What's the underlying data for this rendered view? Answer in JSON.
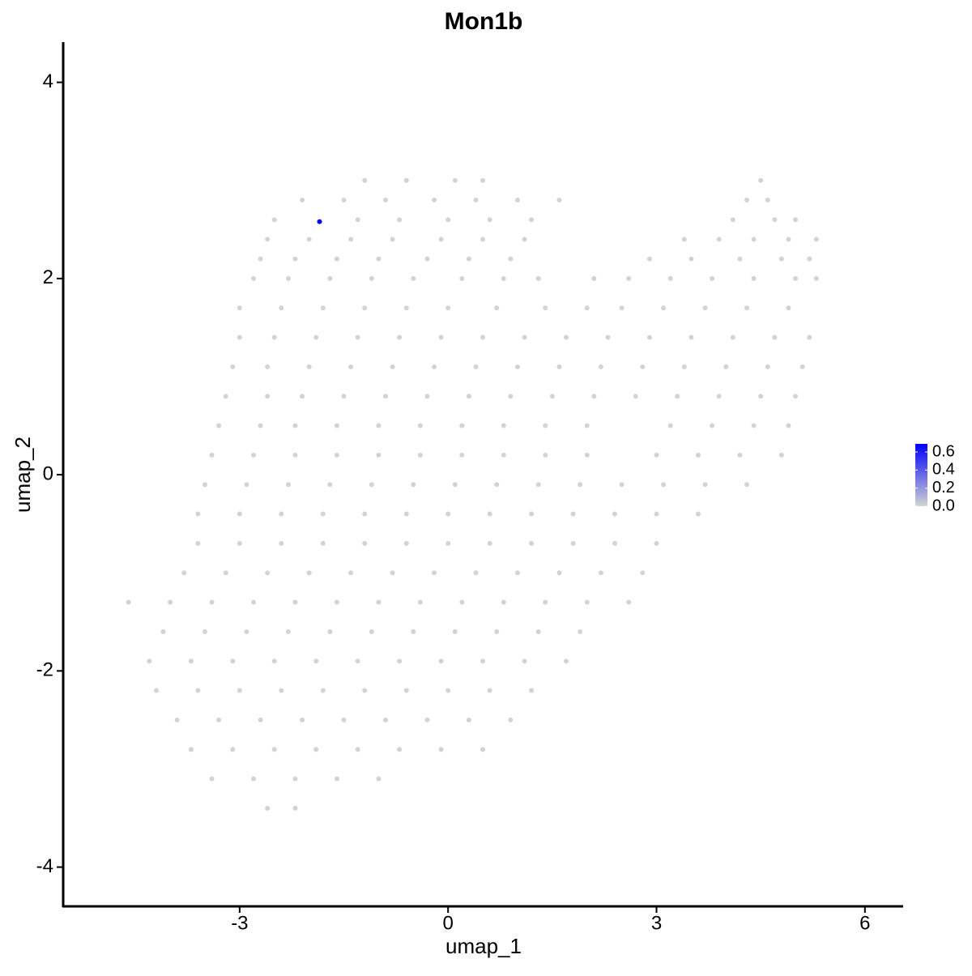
{
  "chart_data": {
    "type": "scatter",
    "title": "Mon1b",
    "x_label": "umap_1",
    "y_label": "umap_2",
    "xlim": [
      -5.54,
      6.55
    ],
    "ylim": [
      -4.4,
      4.41
    ],
    "xticks": [
      -3,
      0,
      3,
      6
    ],
    "yticks": [
      -4,
      -2,
      0,
      2,
      4
    ],
    "x": [
      -1.2,
      -0.6,
      0.1,
      0.5,
      4.5,
      -2.1,
      -1.5,
      -0.9,
      -0.2,
      0.4,
      1.0,
      1.6,
      4.3,
      4.6,
      -2.5,
      -1.3,
      -0.7,
      0.0,
      0.6,
      1.2,
      4.1,
      4.7,
      5.0,
      -2.6,
      -2.0,
      -1.4,
      -0.8,
      -0.1,
      0.5,
      1.1,
      3.4,
      3.9,
      4.4,
      4.9,
      5.3,
      -2.7,
      -2.2,
      -1.6,
      -1.0,
      -0.3,
      0.3,
      0.9,
      2.9,
      3.5,
      4.2,
      4.8,
      5.2,
      -2.8,
      -2.3,
      -1.7,
      -1.1,
      -0.5,
      0.2,
      0.8,
      1.3,
      2.1,
      2.6,
      3.2,
      3.8,
      4.4,
      5.0,
      5.3,
      -3.0,
      -2.4,
      -1.8,
      -1.2,
      -0.6,
      0.0,
      0.7,
      1.4,
      2.0,
      2.5,
      3.1,
      3.7,
      4.3,
      4.9,
      -3.0,
      -2.5,
      -1.9,
      -1.3,
      -0.7,
      -0.1,
      0.5,
      1.1,
      1.7,
      2.3,
      2.9,
      3.5,
      4.1,
      4.7,
      5.2,
      -3.1,
      -2.6,
      -2.0,
      -1.4,
      -0.8,
      -0.2,
      0.4,
      1.0,
      1.6,
      2.2,
      2.8,
      3.4,
      4.0,
      4.6,
      5.1,
      -3.2,
      -2.6,
      -2.1,
      -1.5,
      -0.9,
      -0.3,
      0.3,
      0.9,
      1.5,
      2.1,
      2.7,
      3.3,
      3.9,
      4.5,
      5.0,
      -3.3,
      -2.7,
      -2.2,
      -1.6,
      -1.0,
      -0.4,
      0.2,
      0.8,
      1.4,
      2.0,
      3.2,
      3.8,
      4.4,
      4.9,
      -3.4,
      -2.8,
      -2.2,
      -1.6,
      -1.0,
      -0.4,
      0.2,
      0.8,
      1.4,
      2.0,
      3.0,
      3.6,
      4.2,
      4.8,
      -3.5,
      -2.9,
      -2.3,
      -1.7,
      -1.1,
      -0.5,
      0.1,
      0.7,
      1.3,
      1.9,
      2.5,
      3.1,
      3.7,
      4.3,
      -3.6,
      -3.0,
      -2.4,
      -1.8,
      -1.2,
      -0.6,
      0.0,
      0.6,
      1.2,
      1.8,
      2.4,
      3.0,
      3.6,
      -3.6,
      -3.0,
      -2.4,
      -1.8,
      -1.2,
      -0.6,
      0.0,
      0.6,
      1.2,
      1.8,
      2.4,
      3.0,
      -3.8,
      -3.2,
      -2.6,
      -2.0,
      -1.4,
      -0.8,
      -0.2,
      0.4,
      1.0,
      1.6,
      2.2,
      2.8,
      -4.6,
      -4.0,
      -3.4,
      -2.8,
      -2.2,
      -1.6,
      -1.0,
      -0.4,
      0.2,
      0.8,
      1.4,
      2.0,
      2.6,
      -4.1,
      -3.5,
      -2.9,
      -2.3,
      -1.7,
      -1.1,
      -0.5,
      0.1,
      0.7,
      1.3,
      1.9,
      -4.3,
      -3.7,
      -3.1,
      -2.5,
      -1.9,
      -1.3,
      -0.7,
      -0.1,
      0.5,
      1.1,
      1.7,
      -4.2,
      -3.6,
      -3.0,
      -2.4,
      -1.8,
      -1.2,
      -0.6,
      0.0,
      0.6,
      1.2,
      -3.9,
      -3.3,
      -2.7,
      -2.1,
      -1.5,
      -0.9,
      -0.3,
      0.3,
      0.9,
      -3.7,
      -3.1,
      -2.5,
      -1.9,
      -1.3,
      -0.7,
      -0.1,
      0.5,
      -3.4,
      -2.8,
      -2.2,
      -1.6,
      -1.0,
      -2.6,
      -2.2,
      -1.85
    ],
    "y": [
      3.0,
      3.0,
      3.0,
      3.0,
      3.0,
      2.8,
      2.8,
      2.8,
      2.8,
      2.8,
      2.8,
      2.8,
      2.8,
      2.8,
      2.6,
      2.6,
      2.6,
      2.6,
      2.6,
      2.6,
      2.6,
      2.6,
      2.6,
      2.4,
      2.4,
      2.4,
      2.4,
      2.4,
      2.4,
      2.4,
      2.4,
      2.4,
      2.4,
      2.4,
      2.4,
      2.2,
      2.2,
      2.2,
      2.2,
      2.2,
      2.2,
      2.2,
      2.2,
      2.2,
      2.2,
      2.2,
      2.2,
      2.0,
      2.0,
      2.0,
      2.0,
      2.0,
      2.0,
      2.0,
      2.0,
      2.0,
      2.0,
      2.0,
      2.0,
      2.0,
      2.0,
      2.0,
      1.7,
      1.7,
      1.7,
      1.7,
      1.7,
      1.7,
      1.7,
      1.7,
      1.7,
      1.7,
      1.7,
      1.7,
      1.7,
      1.7,
      1.4,
      1.4,
      1.4,
      1.4,
      1.4,
      1.4,
      1.4,
      1.4,
      1.4,
      1.4,
      1.4,
      1.4,
      1.4,
      1.4,
      1.4,
      1.1,
      1.1,
      1.1,
      1.1,
      1.1,
      1.1,
      1.1,
      1.1,
      1.1,
      1.1,
      1.1,
      1.1,
      1.1,
      1.1,
      1.1,
      0.8,
      0.8,
      0.8,
      0.8,
      0.8,
      0.8,
      0.8,
      0.8,
      0.8,
      0.8,
      0.8,
      0.8,
      0.8,
      0.8,
      0.8,
      0.5,
      0.5,
      0.5,
      0.5,
      0.5,
      0.5,
      0.5,
      0.5,
      0.5,
      0.5,
      0.5,
      0.5,
      0.5,
      0.5,
      0.2,
      0.2,
      0.2,
      0.2,
      0.2,
      0.2,
      0.2,
      0.2,
      0.2,
      0.2,
      0.2,
      0.2,
      0.2,
      0.2,
      -0.1,
      -0.1,
      -0.1,
      -0.1,
      -0.1,
      -0.1,
      -0.1,
      -0.1,
      -0.1,
      -0.1,
      -0.1,
      -0.1,
      -0.1,
      -0.1,
      -0.4,
      -0.4,
      -0.4,
      -0.4,
      -0.4,
      -0.4,
      -0.4,
      -0.4,
      -0.4,
      -0.4,
      -0.4,
      -0.4,
      -0.4,
      -0.7,
      -0.7,
      -0.7,
      -0.7,
      -0.7,
      -0.7,
      -0.7,
      -0.7,
      -0.7,
      -0.7,
      -0.7,
      -0.7,
      -1.0,
      -1.0,
      -1.0,
      -1.0,
      -1.0,
      -1.0,
      -1.0,
      -1.0,
      -1.0,
      -1.0,
      -1.0,
      -1.0,
      -1.3,
      -1.3,
      -1.3,
      -1.3,
      -1.3,
      -1.3,
      -1.3,
      -1.3,
      -1.3,
      -1.3,
      -1.3,
      -1.3,
      -1.3,
      -1.6,
      -1.6,
      -1.6,
      -1.6,
      -1.6,
      -1.6,
      -1.6,
      -1.6,
      -1.6,
      -1.6,
      -1.6,
      -1.9,
      -1.9,
      -1.9,
      -1.9,
      -1.9,
      -1.9,
      -1.9,
      -1.9,
      -1.9,
      -1.9,
      -1.9,
      -2.2,
      -2.2,
      -2.2,
      -2.2,
      -2.2,
      -2.2,
      -2.2,
      -2.2,
      -2.2,
      -2.2,
      -2.5,
      -2.5,
      -2.5,
      -2.5,
      -2.5,
      -2.5,
      -2.5,
      -2.5,
      -2.5,
      -2.8,
      -2.8,
      -2.8,
      -2.8,
      -2.8,
      -2.8,
      -2.8,
      -2.8,
      -3.1,
      -3.1,
      -3.1,
      -3.1,
      -3.1,
      -3.4,
      -3.4,
      2.58
    ],
    "values": [
      0,
      0,
      0,
      0,
      0,
      0,
      0,
      0,
      0,
      0,
      0,
      0,
      0,
      0,
      0,
      0,
      0,
      0,
      0,
      0,
      0,
      0,
      0,
      0,
      0,
      0,
      0,
      0,
      0,
      0,
      0,
      0,
      0,
      0,
      0,
      0,
      0,
      0,
      0,
      0,
      0,
      0,
      0,
      0,
      0,
      0,
      0,
      0,
      0,
      0,
      0,
      0,
      0,
      0,
      0,
      0,
      0,
      0,
      0,
      0,
      0,
      0,
      0,
      0,
      0,
      0,
      0,
      0,
      0,
      0,
      0,
      0,
      0,
      0,
      0,
      0,
      0,
      0,
      0,
      0,
      0,
      0,
      0,
      0,
      0,
      0,
      0,
      0,
      0,
      0,
      0,
      0,
      0,
      0,
      0,
      0,
      0,
      0,
      0,
      0,
      0,
      0,
      0,
      0,
      0,
      0,
      0,
      0,
      0,
      0,
      0,
      0,
      0,
      0,
      0,
      0,
      0,
      0,
      0,
      0,
      0,
      0,
      0,
      0,
      0,
      0,
      0,
      0,
      0,
      0,
      0,
      0,
      0,
      0,
      0,
      0,
      0,
      0,
      0,
      0,
      0,
      0,
      0,
      0,
      0,
      0,
      0,
      0,
      0,
      0,
      0,
      0,
      0,
      0,
      0,
      0,
      0,
      0,
      0,
      0,
      0,
      0,
      0,
      0,
      0,
      0,
      0,
      0,
      0,
      0,
      0,
      0,
      0,
      0,
      0,
      0,
      0,
      0,
      0,
      0,
      0,
      0,
      0,
      0,
      0,
      0,
      0,
      0,
      0,
      0,
      0,
      0,
      0,
      0,
      0,
      0,
      0,
      0,
      0,
      0,
      0,
      0,
      0,
      0,
      0,
      0,
      0,
      0,
      0,
      0,
      0,
      0,
      0,
      0,
      0,
      0,
      0,
      0,
      0,
      0,
      0,
      0,
      0,
      0,
      0,
      0,
      0,
      0,
      0,
      0,
      0,
      0,
      0,
      0,
      0,
      0,
      0,
      0,
      0,
      0,
      0,
      0,
      0,
      0,
      0,
      0,
      0,
      0,
      0,
      0,
      0,
      0,
      0,
      0,
      0,
      0,
      0,
      0,
      0,
      0,
      0,
      0,
      0,
      0,
      0,
      0,
      0,
      0,
      0,
      0.69
    ],
    "colorbar": {
      "colors": [
        "#d3d3d3",
        "#0000ff"
      ],
      "lim": [
        0,
        0.69
      ],
      "ticks": [
        {
          "value": 0,
          "label": "0.0"
        },
        {
          "value": 0.2,
          "label": "0.2"
        },
        {
          "value": 0.4,
          "label": "0.4"
        },
        {
          "value": 0.6,
          "label": "0.6"
        }
      ]
    }
  }
}
